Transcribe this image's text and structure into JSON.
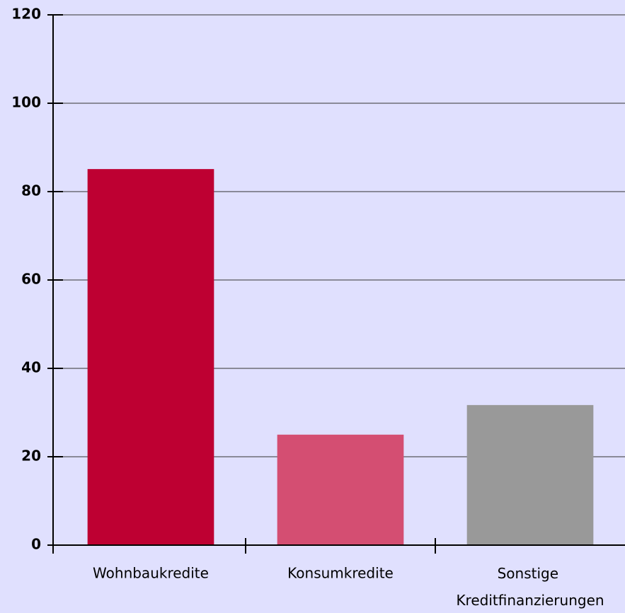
{
  "chart_data": {
    "type": "bar",
    "categories": [
      "Wohnbaukredite",
      "Konsumkredite",
      "Sonstige Kreditfinanzierungen"
    ],
    "values": [
      85.1,
      25,
      31.7
    ],
    "colors": [
      "#be0032",
      "#d44e72",
      "#999999"
    ],
    "ylim": [
      0,
      120
    ],
    "yticks": [
      0,
      20,
      40,
      60,
      80,
      100,
      120
    ],
    "grid": true
  }
}
